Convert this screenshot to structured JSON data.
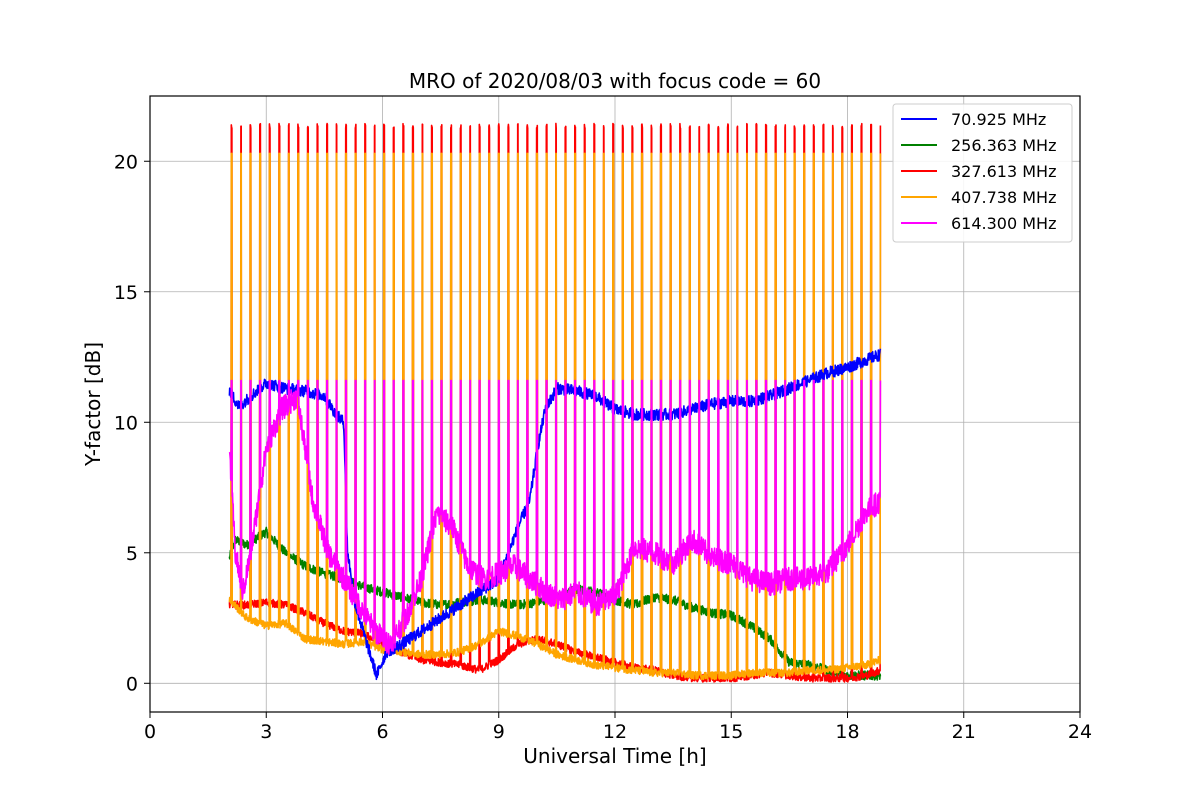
{
  "chart_data": {
    "type": "line",
    "title": "MRO of 2020/08/03 with focus code = 60",
    "xlabel": "Universal Time [h]",
    "ylabel": "Y-factor [dB]",
    "xlim": [
      0,
      24
    ],
    "ylim": [
      -1.1,
      22.5
    ],
    "xticks": [
      0,
      3,
      6,
      9,
      12,
      15,
      18,
      21,
      24
    ],
    "yticks": [
      0,
      5,
      10,
      15,
      20
    ],
    "grid": true,
    "legend_position": "top-right",
    "scan_pulses": {
      "start": 2.1,
      "end": 18.85,
      "count": 69,
      "orange_peak": 20.3,
      "red_peak": 21.35,
      "magenta_peak": 11.6
    },
    "series": [
      {
        "name": " 70.925 MHz",
        "color": "#0000ff",
        "x": [
          2.05,
          2.3,
          2.6,
          3.0,
          3.5,
          4.0,
          4.5,
          4.8,
          5.0,
          5.1,
          5.3,
          5.6,
          5.85,
          6.1,
          6.5,
          7.0,
          7.5,
          8.0,
          8.5,
          9.0,
          9.5,
          9.8,
          10.0,
          10.2,
          10.5,
          11.0,
          11.5,
          12.0,
          12.5,
          13.0,
          13.5,
          14.0,
          14.5,
          15.0,
          15.5,
          16.0,
          16.5,
          17.0,
          17.5,
          18.0,
          18.5,
          18.85
        ],
        "y": [
          11.2,
          10.6,
          11.0,
          11.5,
          11.3,
          11.2,
          11.0,
          10.3,
          10.0,
          5.0,
          3.0,
          1.5,
          0.3,
          1.2,
          1.5,
          2.0,
          2.5,
          3.0,
          3.5,
          4.0,
          6.0,
          7.0,
          9.0,
          10.5,
          11.3,
          11.2,
          11.0,
          10.5,
          10.3,
          10.3,
          10.3,
          10.5,
          10.7,
          10.8,
          10.8,
          11.0,
          11.3,
          11.6,
          11.9,
          12.1,
          12.4,
          12.6
        ]
      },
      {
        "name": "256.363 MHz",
        "color": "#008000",
        "x": [
          2.05,
          2.2,
          2.5,
          3.0,
          3.5,
          4.0,
          4.5,
          5.0,
          5.5,
          6.0,
          6.5,
          7.0,
          7.5,
          8.0,
          8.5,
          9.0,
          9.5,
          10.0,
          10.5,
          11.0,
          11.5,
          12.0,
          12.5,
          13.0,
          13.5,
          14.0,
          14.5,
          15.0,
          15.5,
          16.0,
          16.5,
          17.0,
          17.5,
          18.0,
          18.5,
          18.85
        ],
        "y": [
          4.8,
          5.5,
          5.3,
          5.8,
          5.0,
          4.5,
          4.2,
          4.0,
          3.7,
          3.5,
          3.3,
          3.1,
          3.0,
          3.1,
          3.2,
          3.1,
          3.0,
          3.1,
          3.3,
          3.6,
          3.5,
          3.2,
          3.0,
          3.3,
          3.2,
          2.9,
          2.7,
          2.6,
          2.2,
          1.7,
          0.8,
          0.7,
          0.5,
          0.3,
          0.3,
          0.3
        ]
      },
      {
        "name": "327.613 MHz",
        "color": "#ff0000",
        "x": [
          2.05,
          2.5,
          3.0,
          3.5,
          4.0,
          4.5,
          5.0,
          5.5,
          6.0,
          6.5,
          7.0,
          7.5,
          8.0,
          8.5,
          9.0,
          9.5,
          10.0,
          10.5,
          11.0,
          11.5,
          12.0,
          12.5,
          13.0,
          13.5,
          14.0,
          14.5,
          15.0,
          15.5,
          16.0,
          16.5,
          17.0,
          17.5,
          18.0,
          18.5,
          18.85
        ],
        "y": [
          3.0,
          3.0,
          3.1,
          3.0,
          2.7,
          2.3,
          2.0,
          1.9,
          1.5,
          1.2,
          0.9,
          0.8,
          0.7,
          0.5,
          0.9,
          1.5,
          1.7,
          1.5,
          1.2,
          1.0,
          0.8,
          0.6,
          0.5,
          0.3,
          0.2,
          0.2,
          0.2,
          0.3,
          0.4,
          0.3,
          0.2,
          0.2,
          0.2,
          0.3,
          0.5
        ]
      },
      {
        "name": "407.738 MHz",
        "color": "#ffa500",
        "x": [
          2.05,
          2.5,
          3.0,
          3.5,
          4.0,
          4.5,
          5.0,
          5.5,
          6.0,
          6.5,
          7.0,
          7.5,
          8.0,
          8.5,
          9.0,
          9.5,
          10.0,
          10.5,
          11.0,
          11.5,
          12.0,
          12.5,
          13.0,
          13.5,
          14.0,
          14.5,
          15.0,
          15.5,
          16.0,
          16.5,
          17.0,
          17.5,
          18.0,
          18.5,
          18.85
        ],
        "y": [
          3.2,
          2.5,
          2.2,
          2.3,
          1.7,
          1.6,
          1.5,
          1.6,
          1.3,
          1.2,
          1.1,
          1.1,
          1.2,
          1.5,
          2.0,
          1.8,
          1.5,
          1.1,
          0.9,
          0.7,
          0.6,
          0.5,
          0.4,
          0.4,
          0.3,
          0.3,
          0.3,
          0.4,
          0.4,
          0.4,
          0.5,
          0.5,
          0.6,
          0.7,
          0.9
        ]
      },
      {
        "name": "614.300 MHz",
        "color": "#ff00ff",
        "x": [
          2.05,
          2.2,
          2.4,
          2.6,
          3.0,
          3.4,
          3.8,
          4.2,
          4.6,
          5.0,
          5.4,
          5.8,
          6.2,
          6.6,
          7.0,
          7.4,
          7.8,
          8.2,
          8.6,
          9.0,
          9.4,
          9.8,
          10.2,
          10.6,
          11.0,
          11.5,
          12.0,
          12.5,
          13.0,
          13.5,
          14.0,
          14.5,
          15.0,
          15.5,
          16.0,
          16.5,
          17.0,
          17.5,
          18.0,
          18.5,
          18.85
        ],
        "y": [
          9.0,
          5.0,
          3.5,
          5.0,
          9.0,
          10.5,
          11.0,
          7.0,
          5.0,
          4.0,
          3.0,
          2.0,
          1.5,
          2.5,
          4.0,
          6.5,
          6.0,
          4.5,
          4.0,
          4.2,
          4.5,
          4.0,
          3.5,
          3.2,
          3.5,
          3.0,
          3.3,
          5.2,
          5.0,
          4.6,
          5.5,
          4.8,
          4.6,
          4.0,
          3.8,
          4.0,
          4.0,
          4.3,
          5.3,
          6.6,
          7.0
        ]
      }
    ]
  }
}
